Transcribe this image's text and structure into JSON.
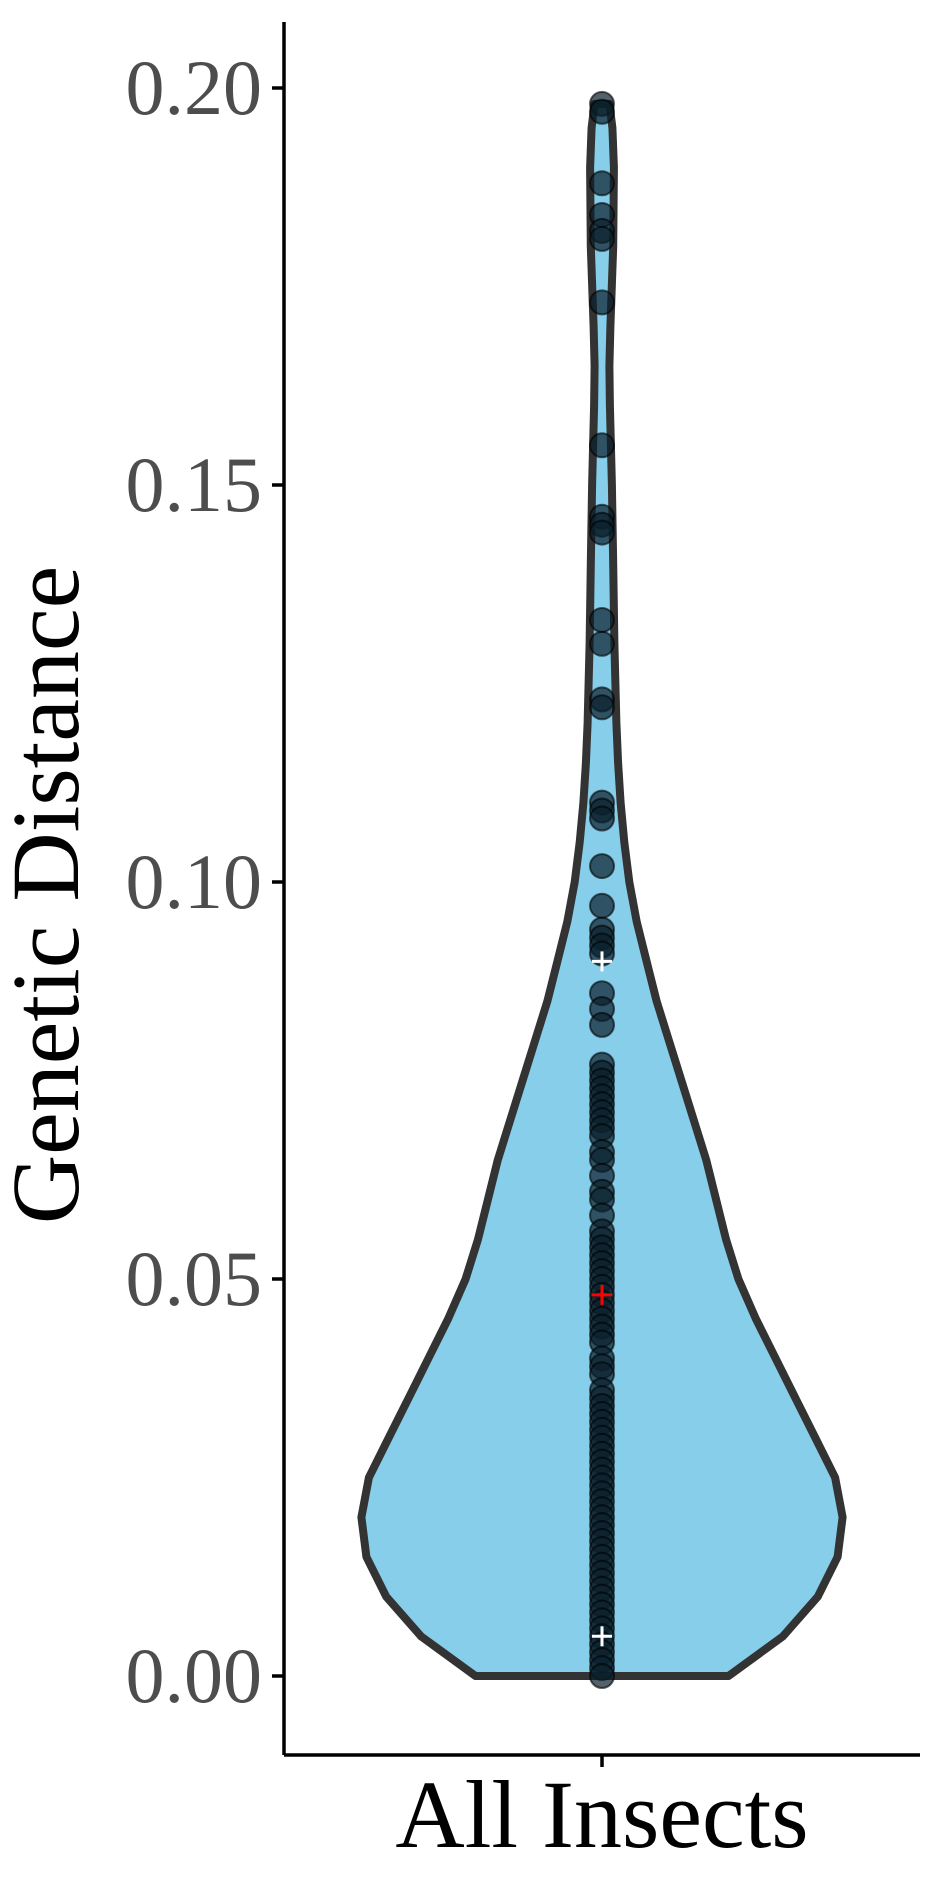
{
  "chart_data": {
    "type": "violin",
    "title": "",
    "xlabel": "",
    "ylabel": "Genetic Distance",
    "categories": [
      "All Insects"
    ],
    "ylim": [
      -0.01,
      0.208
    ],
    "yticks": [
      0.0,
      0.05,
      0.1,
      0.15,
      0.2
    ],
    "ytick_labels": [
      "0.00",
      "0.05",
      "0.10",
      "0.15",
      "0.20"
    ],
    "grid": false,
    "legend": "none",
    "series": [
      {
        "category": "All Insects",
        "min": 0.0,
        "max": 0.198,
        "points": [
          0.198,
          0.197,
          0.188,
          0.184,
          0.182,
          0.181,
          0.173,
          0.155,
          0.146,
          0.145,
          0.144,
          0.133,
          0.13,
          0.123,
          0.122,
          0.11,
          0.109,
          0.108,
          0.102,
          0.097,
          0.094,
          0.093,
          0.092,
          0.091,
          0.086,
          0.084,
          0.082,
          0.077,
          0.076,
          0.075,
          0.074,
          0.073,
          0.072,
          0.071,
          0.07,
          0.069,
          0.068,
          0.066,
          0.065,
          0.063,
          0.061,
          0.06,
          0.058,
          0.056,
          0.055,
          0.054,
          0.053,
          0.052,
          0.051,
          0.05,
          0.049,
          0.048,
          0.047,
          0.046,
          0.045,
          0.044,
          0.043,
          0.042,
          0.04,
          0.039,
          0.038,
          0.036,
          0.035,
          0.034,
          0.033,
          0.032,
          0.031,
          0.03,
          0.029,
          0.028,
          0.027,
          0.026,
          0.025,
          0.024,
          0.023,
          0.022,
          0.021,
          0.02,
          0.019,
          0.018,
          0.017,
          0.016,
          0.015,
          0.014,
          0.013,
          0.012,
          0.011,
          0.01,
          0.009,
          0.008,
          0.007,
          0.006,
          0.005,
          0.004,
          0.003,
          0.002,
          0.001,
          0.0
        ],
        "density": [
          [
            0.0,
            0.51
          ],
          [
            0.005,
            0.73
          ],
          [
            0.01,
            0.87
          ],
          [
            0.015,
            0.95
          ],
          [
            0.02,
            0.97
          ],
          [
            0.025,
            0.94
          ],
          [
            0.03,
            0.86
          ],
          [
            0.035,
            0.78
          ],
          [
            0.04,
            0.7
          ],
          [
            0.045,
            0.62
          ],
          [
            0.05,
            0.55
          ],
          [
            0.055,
            0.5
          ],
          [
            0.06,
            0.46
          ],
          [
            0.065,
            0.42
          ],
          [
            0.07,
            0.37
          ],
          [
            0.075,
            0.32
          ],
          [
            0.08,
            0.27
          ],
          [
            0.085,
            0.22
          ],
          [
            0.09,
            0.18
          ],
          [
            0.095,
            0.14
          ],
          [
            0.1,
            0.11
          ],
          [
            0.105,
            0.09
          ],
          [
            0.11,
            0.075
          ],
          [
            0.115,
            0.065
          ],
          [
            0.12,
            0.058
          ],
          [
            0.13,
            0.05
          ],
          [
            0.14,
            0.045
          ],
          [
            0.15,
            0.04
          ],
          [
            0.16,
            0.032
          ],
          [
            0.165,
            0.03
          ],
          [
            0.17,
            0.034
          ],
          [
            0.18,
            0.045
          ],
          [
            0.19,
            0.048
          ],
          [
            0.195,
            0.042
          ],
          [
            0.198,
            0.03
          ]
        ],
        "markers": [
          {
            "y": 0.09,
            "color": "#ffffff"
          },
          {
            "y": 0.048,
            "color": "#ff0000"
          },
          {
            "y": 0.005,
            "color": "#ffffff"
          }
        ]
      }
    ],
    "colors": {
      "fill": "#87ceeb",
      "outline": "#333333",
      "points": "#0a1f2b",
      "tick_labels": "#4d4d4d",
      "axis": "#000000"
    }
  }
}
